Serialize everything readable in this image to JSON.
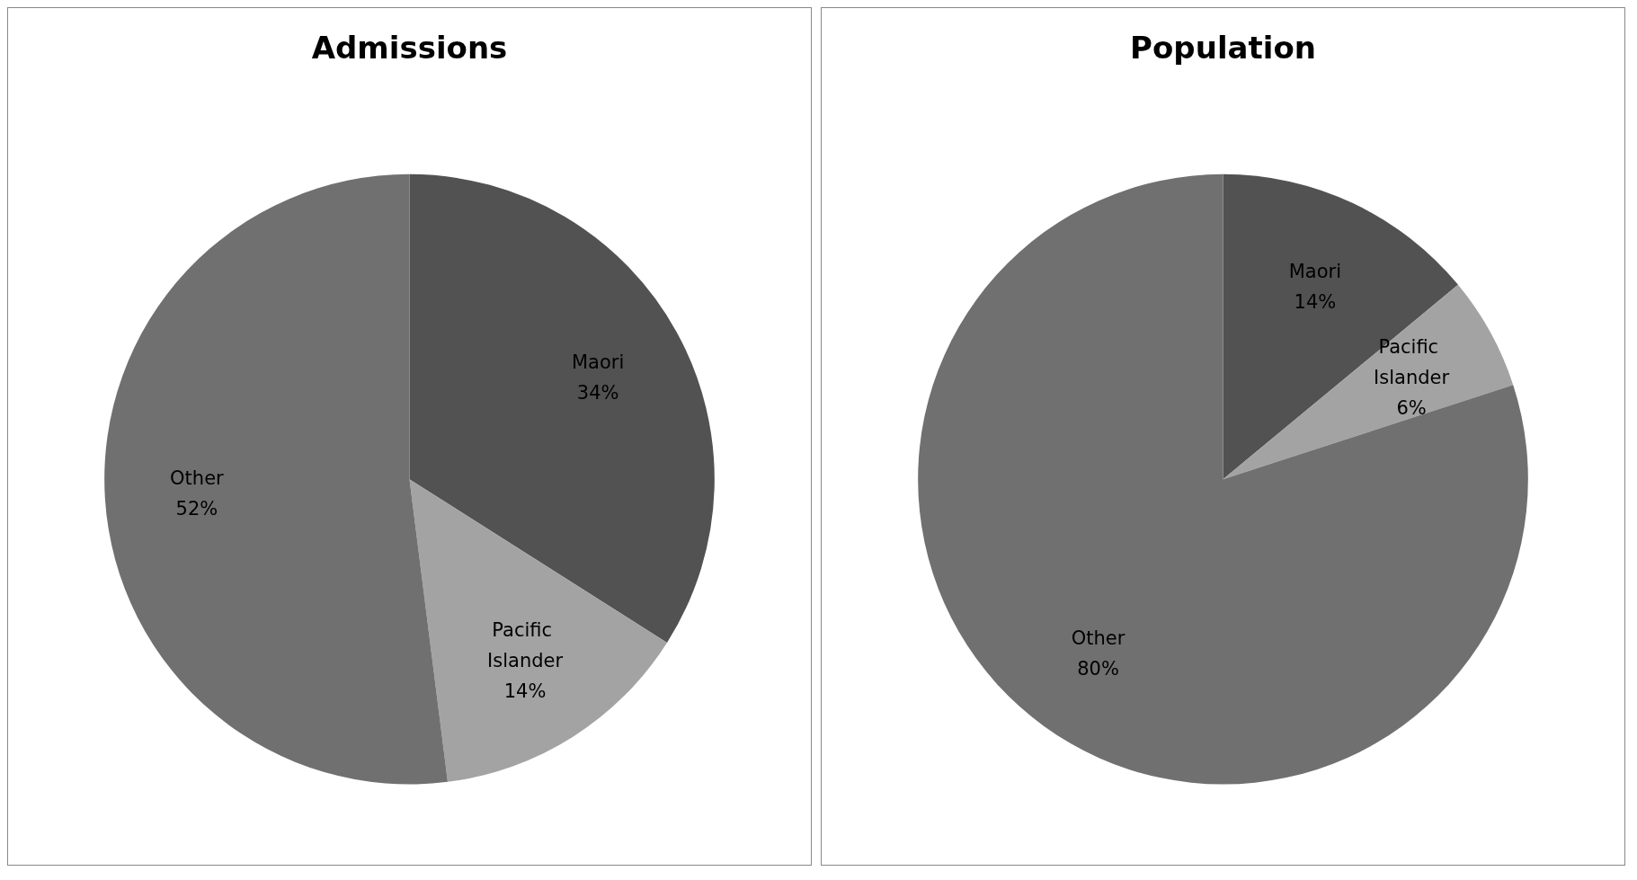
{
  "chart_data": [
    {
      "type": "pie",
      "title": "Admissions",
      "categories": [
        "Maori",
        "Pacific Islander",
        "Other"
      ],
      "values": [
        34,
        14,
        52
      ],
      "value_labels": [
        "34%",
        "14%",
        "52%"
      ],
      "colors": [
        "#525252",
        "#a3a3a3",
        "#707070"
      ],
      "legend": false
    },
    {
      "type": "pie",
      "title": "Population",
      "categories": [
        "Maori",
        "Pacific Islander",
        "Other"
      ],
      "values": [
        14,
        6,
        80
      ],
      "value_labels": [
        "14%",
        "6%",
        "80%"
      ],
      "colors": [
        "#525252",
        "#a3a3a3",
        "#707070"
      ],
      "legend": false
    }
  ]
}
